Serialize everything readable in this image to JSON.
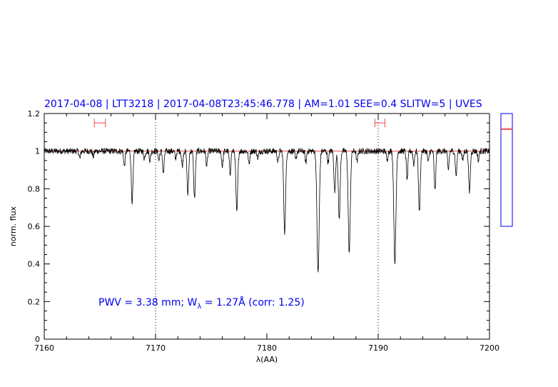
{
  "chart_data": {
    "type": "line",
    "title": "2017-04-08 | LTT3218 | 2017-04-08T23:45:46.778 | AM=1.01 SEE=0.4 SLITW=5 | UVES",
    "xlabel": "λ(AA)",
    "ylabel": "norm. flux",
    "xlim": [
      7160,
      7200
    ],
    "ylim": [
      0,
      1.2
    ],
    "x_ticks": [
      7160,
      7170,
      7180,
      7190,
      7200
    ],
    "y_ticks": [
      0,
      0.2,
      0.4,
      0.6,
      0.8,
      1,
      1.2
    ],
    "x_tick_labels": [
      "7160",
      "7170",
      "7180",
      "7190",
      "7200"
    ],
    "y_tick_labels": [
      "0",
      "0.2",
      "0.4",
      "0.6",
      "0.8",
      "1",
      "1.2"
    ],
    "continuum_level": 1.0,
    "vertical_markers": [
      7170,
      7190
    ],
    "continuum_windows": [
      {
        "x_start": 7164.5,
        "x_end": 7165.5,
        "y": 1.15
      },
      {
        "x_start": 7189.7,
        "x_end": 7190.6,
        "y": 1.15
      }
    ],
    "absorption_lines": [
      {
        "x": 7163.2,
        "depth": 0.04
      },
      {
        "x": 7164.4,
        "depth": 0.03
      },
      {
        "x": 7167.2,
        "depth": 0.08
      },
      {
        "x": 7167.9,
        "depth": 0.27
      },
      {
        "x": 7169.0,
        "depth": 0.04
      },
      {
        "x": 7169.5,
        "depth": 0.05
      },
      {
        "x": 7170.3,
        "depth": 0.05
      },
      {
        "x": 7170.7,
        "depth": 0.12
      },
      {
        "x": 7171.8,
        "depth": 0.04
      },
      {
        "x": 7172.4,
        "depth": 0.08
      },
      {
        "x": 7172.9,
        "depth": 0.23
      },
      {
        "x": 7173.5,
        "depth": 0.25
      },
      {
        "x": 7174.6,
        "depth": 0.08
      },
      {
        "x": 7176.0,
        "depth": 0.08
      },
      {
        "x": 7176.7,
        "depth": 0.12
      },
      {
        "x": 7177.3,
        "depth": 0.33
      },
      {
        "x": 7178.4,
        "depth": 0.07
      },
      {
        "x": 7179.2,
        "depth": 0.04
      },
      {
        "x": 7181.0,
        "depth": 0.06
      },
      {
        "x": 7181.6,
        "depth": 0.43
      },
      {
        "x": 7182.6,
        "depth": 0.05
      },
      {
        "x": 7183.5,
        "depth": 0.06
      },
      {
        "x": 7184.6,
        "depth": 0.65
      },
      {
        "x": 7185.5,
        "depth": 0.06
      },
      {
        "x": 7186.1,
        "depth": 0.22
      },
      {
        "x": 7186.5,
        "depth": 0.36
      },
      {
        "x": 7187.4,
        "depth": 0.54
      },
      {
        "x": 7188.1,
        "depth": 0.06
      },
      {
        "x": 7190.8,
        "depth": 0.05
      },
      {
        "x": 7191.5,
        "depth": 0.59
      },
      {
        "x": 7192.6,
        "depth": 0.15
      },
      {
        "x": 7193.2,
        "depth": 0.07
      },
      {
        "x": 7193.7,
        "depth": 0.32
      },
      {
        "x": 7194.5,
        "depth": 0.06
      },
      {
        "x": 7195.1,
        "depth": 0.21
      },
      {
        "x": 7196.3,
        "depth": 0.1
      },
      {
        "x": 7197.0,
        "depth": 0.13
      },
      {
        "x": 7197.6,
        "depth": 0.05
      },
      {
        "x": 7198.2,
        "depth": 0.22
      },
      {
        "x": 7199.0,
        "depth": 0.05
      }
    ],
    "annotation": {
      "pwv_text": "PWV  =  3.38  mm;  W",
      "subscript": "λ",
      "rest_text": "  =  1.27Å  (corr:  1.25)"
    },
    "side_panel": {
      "ylim": [
        0,
        1.2
      ],
      "marker_values": [
        1.03,
        1.04
      ]
    },
    "colors": {
      "title": "#0000ee",
      "annotation": "#0000ee",
      "spectrum": "#000000",
      "continuum": "#ee4444",
      "side_panel_border": "#0000ee"
    },
    "grid": false,
    "legend": "none"
  }
}
